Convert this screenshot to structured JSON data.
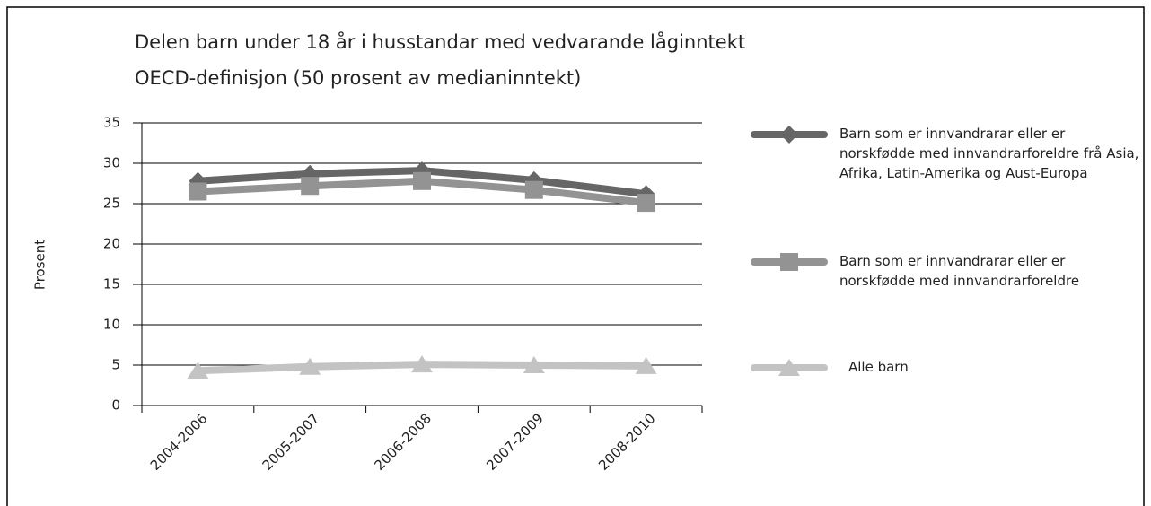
{
  "chart_data": {
    "type": "line",
    "title": "Delen barn under 18 år i husstandar med vedvarande låginntekt",
    "subtitle": "OECD-definisjon (50 prosent av medianinntekt)",
    "y_label": "Prosent",
    "categories": [
      "2004-2006",
      "2005-2007",
      "2006-2008",
      "2007-2009",
      "2008-2010"
    ],
    "series": [
      {
        "name": "Barn som er innvandrarar eller er norskfødde med innvandrarforeldre frå Asia, Afrika, Latin-Amerika og Aust-Europa",
        "color": "#666666",
        "marker": "diamond",
        "values": [
          27.8,
          28.7,
          29.1,
          27.9,
          26.2
        ]
      },
      {
        "name": "Barn som er innvandrarar eller er norskfødde med innvandrarforeldre",
        "color": "#939393",
        "marker": "square",
        "values": [
          26.5,
          27.2,
          27.8,
          26.7,
          25.1
        ]
      },
      {
        "name": "Alle barn",
        "color": "#c3c3c3",
        "marker": "triangle",
        "values": [
          4.3,
          4.8,
          5.1,
          5.0,
          4.9
        ]
      }
    ],
    "ylim": [
      0,
      35
    ],
    "yticks": [
      0,
      5,
      10,
      15,
      20,
      25,
      30,
      35
    ],
    "grid": true,
    "legend": "right"
  }
}
